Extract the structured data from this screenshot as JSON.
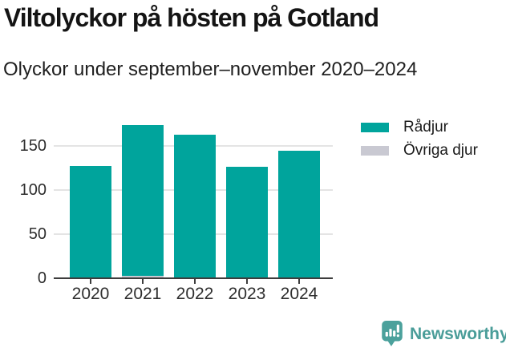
{
  "header": {
    "title": "Viltolyckor på hösten på Gotland",
    "subtitle": "Olyckor under september–november 2020–2024"
  },
  "legend": {
    "items": [
      {
        "label": "Rådjur",
        "color": "#00a49c"
      },
      {
        "label": "Övriga djur",
        "color": "#c9c9d2"
      }
    ]
  },
  "chart_data": {
    "type": "bar",
    "stacked": true,
    "title": "Viltolyckor på hösten på Gotland",
    "subtitle": "Olyckor under september–november 2020–2024",
    "categories": [
      "2020",
      "2021",
      "2022",
      "2023",
      "2024"
    ],
    "series": [
      {
        "name": "Övriga djur",
        "color": "#c9c9d2",
        "values": [
          0,
          3,
          1,
          1,
          1
        ]
      },
      {
        "name": "Rådjur",
        "color": "#00a49c",
        "values": [
          127,
          170,
          161,
          125,
          143
        ]
      }
    ],
    "totals": [
      127,
      173,
      162,
      126,
      144
    ],
    "yticks": [
      0,
      50,
      100,
      150
    ],
    "ylim": [
      0,
      175
    ],
    "grid": "horizontal-gridlines",
    "legend_position": "top-right",
    "xlabel": "",
    "ylabel": ""
  },
  "footer": {
    "brand": "Newsworthy"
  },
  "colors": {
    "accent_teal": "#00a49c",
    "other_gray": "#c9c9d2",
    "axis_line": "#3d3d3d",
    "gridline": "#e4e4e4",
    "text_dark": "#1a1a1a",
    "brand_teal": "#4a9d99"
  }
}
